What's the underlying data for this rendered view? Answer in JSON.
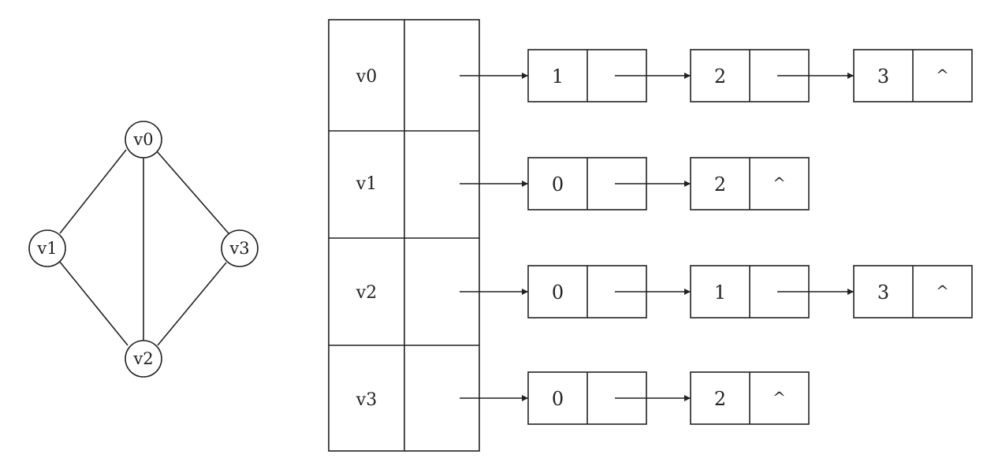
{
  "graph": {
    "vertices": [
      "v0",
      "v1",
      "v3",
      "v2"
    ],
    "edges": [
      [
        "v0",
        "v1"
      ],
      [
        "v0",
        "v2"
      ],
      [
        "v0",
        "v3"
      ],
      [
        "v1",
        "v2"
      ],
      [
        "v3",
        "v2"
      ]
    ]
  },
  "adjacency_list": {
    "rows": [
      {
        "vertex": "v0",
        "nodes": [
          {
            "value": "1",
            "next": ""
          },
          {
            "value": "2",
            "next": ""
          },
          {
            "value": "3",
            "next": "^"
          }
        ]
      },
      {
        "vertex": "v1",
        "nodes": [
          {
            "value": "0",
            "next": ""
          },
          {
            "value": "2",
            "next": "^"
          }
        ]
      },
      {
        "vertex": "v2",
        "nodes": [
          {
            "value": "0",
            "next": ""
          },
          {
            "value": "1",
            "next": ""
          },
          {
            "value": "3",
            "next": "^"
          }
        ]
      },
      {
        "vertex": "v3",
        "nodes": [
          {
            "value": "0",
            "next": ""
          },
          {
            "value": "2",
            "next": "^"
          }
        ]
      }
    ]
  },
  "colors": {
    "stroke": "#222222",
    "background": "#ffffff"
  }
}
